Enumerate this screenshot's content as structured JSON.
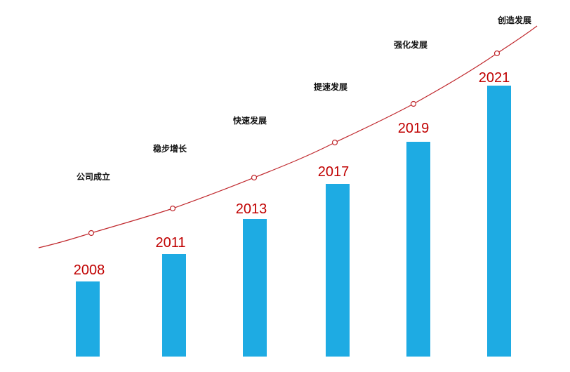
{
  "milestones": [
    {
      "year": "2008",
      "stage": "公司成立"
    },
    {
      "year": "2011",
      "stage": "稳步增长"
    },
    {
      "year": "2013",
      "stage": "快速发展"
    },
    {
      "year": "2017",
      "stage": "提速发展"
    },
    {
      "year": "2019",
      "stage": "强化发展"
    },
    {
      "year": "2021",
      "stage": "创造发展"
    }
  ]
}
